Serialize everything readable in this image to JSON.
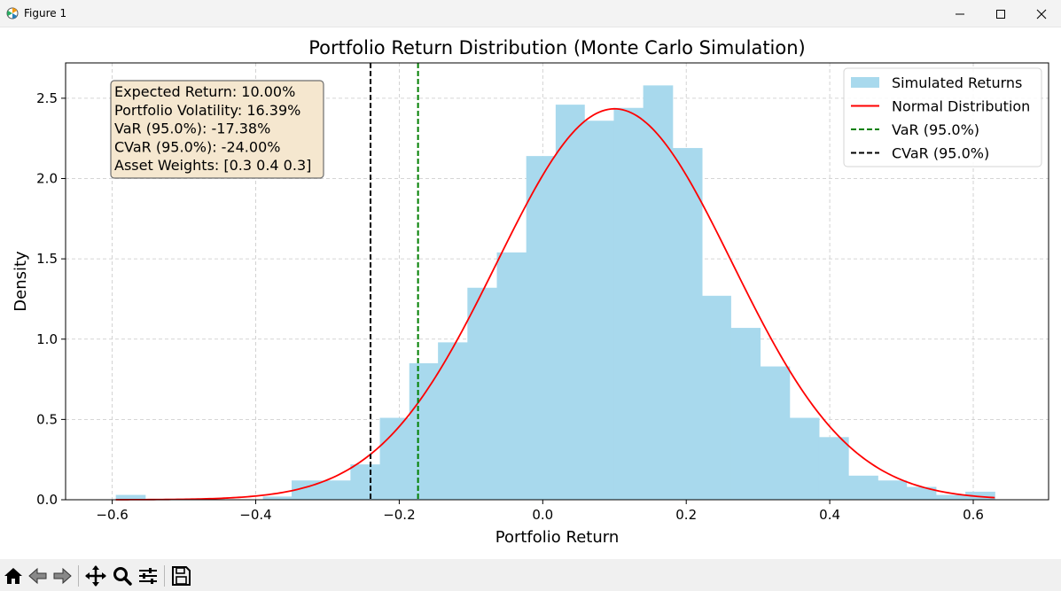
{
  "window": {
    "title": "Figure 1"
  },
  "chart_data": {
    "type": "bar",
    "title": "Portfolio Return Distribution (Monte Carlo Simulation)",
    "xlabel": "Portfolio Return",
    "ylabel": "Density",
    "xlim": [
      -0.665,
      0.705
    ],
    "ylim": [
      0,
      2.72
    ],
    "xticks": [
      -0.6,
      -0.4,
      -0.2,
      0.0,
      0.2,
      0.4,
      0.6
    ],
    "xtick_labels": [
      "−0.6",
      "−0.4",
      "−0.2",
      "0.0",
      "0.2",
      "0.4",
      "0.6"
    ],
    "yticks": [
      0.0,
      0.5,
      1.0,
      1.5,
      2.0,
      2.5
    ],
    "ytick_labels": [
      "0.0",
      "0.5",
      "1.0",
      "1.5",
      "2.0",
      "2.5"
    ],
    "grid": true,
    "legend_position": "upper right",
    "histogram": {
      "name": "Simulated Returns",
      "color": "#a8d9ed",
      "bins": [
        {
          "x0": -0.595,
          "x1": -0.554,
          "y": 0.03
        },
        {
          "x0": -0.554,
          "x1": -0.513,
          "y": 0.0
        },
        {
          "x0": -0.513,
          "x1": -0.472,
          "y": 0.0
        },
        {
          "x0": -0.472,
          "x1": -0.431,
          "y": 0.0
        },
        {
          "x0": -0.431,
          "x1": -0.39,
          "y": 0.0
        },
        {
          "x0": -0.39,
          "x1": -0.35,
          "y": 0.02
        },
        {
          "x0": -0.35,
          "x1": -0.309,
          "y": 0.12
        },
        {
          "x0": -0.309,
          "x1": -0.268,
          "y": 0.12
        },
        {
          "x0": -0.268,
          "x1": -0.227,
          "y": 0.22
        },
        {
          "x0": -0.227,
          "x1": -0.186,
          "y": 0.51
        },
        {
          "x0": -0.186,
          "x1": -0.146,
          "y": 0.85
        },
        {
          "x0": -0.146,
          "x1": -0.105,
          "y": 0.98
        },
        {
          "x0": -0.105,
          "x1": -0.064,
          "y": 1.32
        },
        {
          "x0": -0.064,
          "x1": -0.023,
          "y": 1.54
        },
        {
          "x0": -0.023,
          "x1": 0.018,
          "y": 2.14
        },
        {
          "x0": 0.018,
          "x1": 0.058,
          "y": 2.46
        },
        {
          "x0": 0.058,
          "x1": 0.099,
          "y": 2.36
        },
        {
          "x0": 0.099,
          "x1": 0.14,
          "y": 2.44
        },
        {
          "x0": 0.14,
          "x1": 0.181,
          "y": 2.58
        },
        {
          "x0": 0.181,
          "x1": 0.222,
          "y": 2.19
        },
        {
          "x0": 0.222,
          "x1": 0.262,
          "y": 1.27
        },
        {
          "x0": 0.262,
          "x1": 0.303,
          "y": 1.07
        },
        {
          "x0": 0.303,
          "x1": 0.344,
          "y": 0.83
        },
        {
          "x0": 0.344,
          "x1": 0.385,
          "y": 0.51
        },
        {
          "x0": 0.385,
          "x1": 0.426,
          "y": 0.39
        },
        {
          "x0": 0.426,
          "x1": 0.467,
          "y": 0.15
        },
        {
          "x0": 0.467,
          "x1": 0.507,
          "y": 0.12
        },
        {
          "x0": 0.507,
          "x1": 0.548,
          "y": 0.08
        },
        {
          "x0": 0.548,
          "x1": 0.589,
          "y": 0.03
        },
        {
          "x0": 0.589,
          "x1": 0.63,
          "y": 0.05
        }
      ]
    },
    "normal_curve": {
      "name": "Normal Distribution",
      "color": "#ff0000",
      "mean": 0.1,
      "std": 0.1639,
      "x_min": -0.595,
      "x_max": 0.63
    },
    "vlines": [
      {
        "name": "VaR (95.0%)",
        "x": -0.1738,
        "color": "#008000",
        "style": "dashed"
      },
      {
        "name": "CVaR (95.0%)",
        "x": -0.24,
        "color": "#000000",
        "style": "dashed"
      }
    ],
    "legend": [
      {
        "label": "Simulated Returns",
        "kind": "patch",
        "color": "#a8d9ed"
      },
      {
        "label": "Normal Distribution",
        "kind": "line",
        "color": "#ff0000"
      },
      {
        "label": "VaR (95.0%)",
        "kind": "dashed",
        "color": "#008000"
      },
      {
        "label": "CVaR (95.0%)",
        "kind": "dashed",
        "color": "#000000"
      }
    ],
    "annotation": {
      "lines": [
        "Expected Return: 10.00%",
        "Portfolio Volatility: 16.39%",
        "VaR (95.0%): -17.38%",
        "CVaR (95.0%): -24.00%",
        "Asset Weights: [0.3 0.4 0.3]"
      ],
      "facecolor": "#f5e7cf"
    }
  },
  "toolbar": {
    "buttons": [
      "home-icon",
      "back-icon",
      "forward-icon",
      "pan-icon",
      "zoom-icon",
      "configure-subplots-icon",
      "save-icon"
    ]
  }
}
